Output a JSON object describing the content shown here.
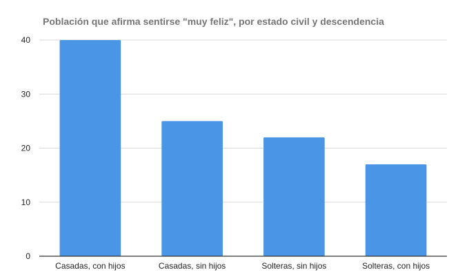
{
  "chart_data": {
    "type": "bar",
    "title": "Población que afirma sentirse \"muy feliz\", por estado civil y descendencia",
    "categories": [
      "Casadas, con hijos",
      "Casadas, sin hijos",
      "Solteras, sin hijos",
      "Solteras, con hijos"
    ],
    "values": [
      40,
      25,
      22,
      17
    ],
    "ylim": [
      0,
      40
    ],
    "yticks": [
      0,
      10,
      20,
      30,
      40
    ],
    "xlabel": "",
    "ylabel": "",
    "grid": true,
    "legend": "none",
    "colors": {
      "bar": "#4a95e5"
    }
  }
}
